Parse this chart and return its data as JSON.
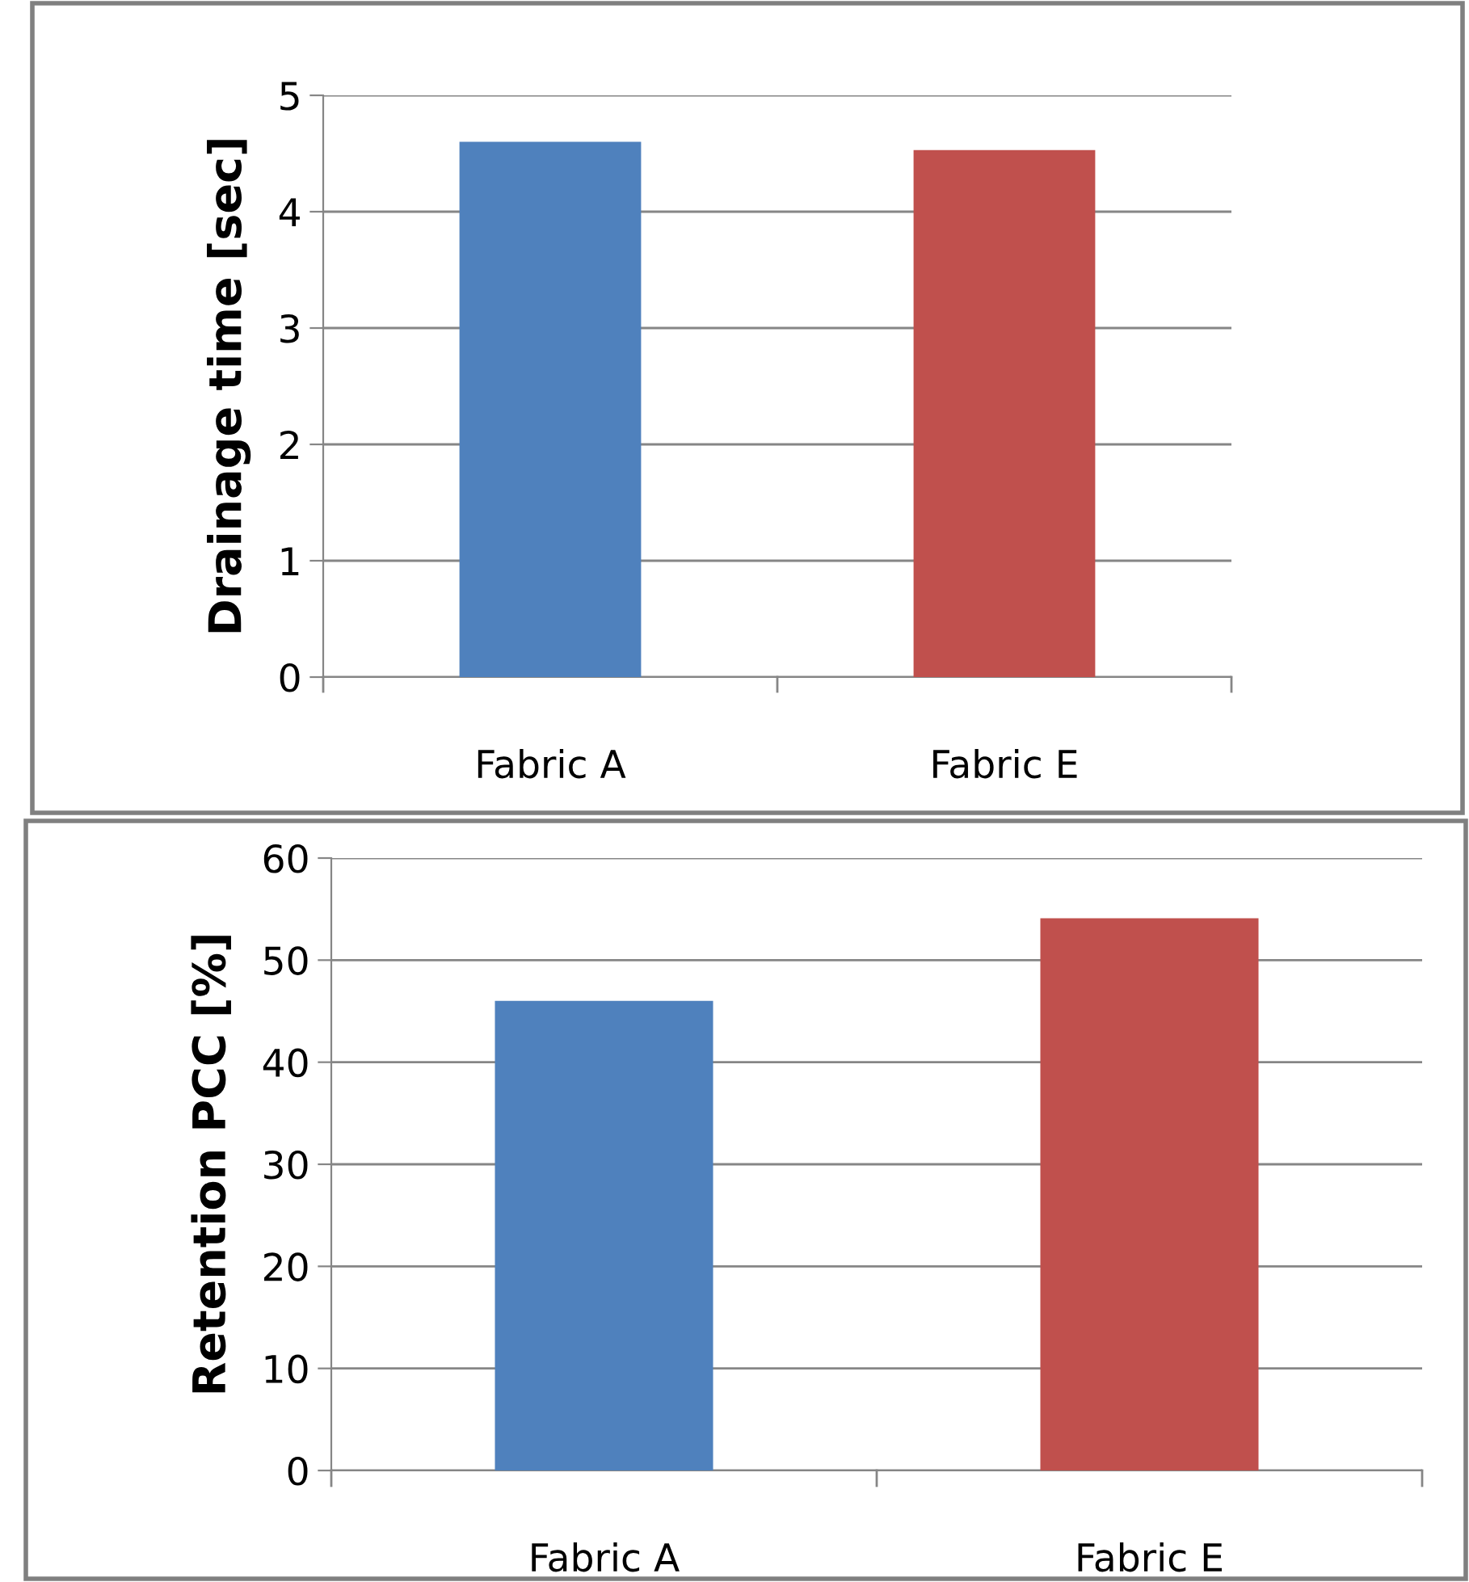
{
  "chart_data": [
    {
      "type": "bar",
      "ylabel": "Drainage time [sec]",
      "categories": [
        "Fabric A",
        "Fabric E"
      ],
      "values": [
        4.6,
        4.53
      ],
      "colors": [
        "#4f81bd",
        "#c0504d"
      ],
      "ylim": [
        0,
        5
      ],
      "yticks": [
        0,
        1,
        2,
        3,
        4,
        5
      ],
      "grid": "y",
      "legend": false
    },
    {
      "type": "bar",
      "ylabel": "Retention PCC [%]",
      "categories": [
        "Fabric A",
        "Fabric E"
      ],
      "values": [
        46.0,
        54.1
      ],
      "colors": [
        "#4f81bd",
        "#c0504d"
      ],
      "ylim": [
        0,
        60
      ],
      "yticks": [
        0,
        10,
        20,
        30,
        40,
        50,
        60
      ],
      "grid": "y",
      "legend": false
    }
  ]
}
